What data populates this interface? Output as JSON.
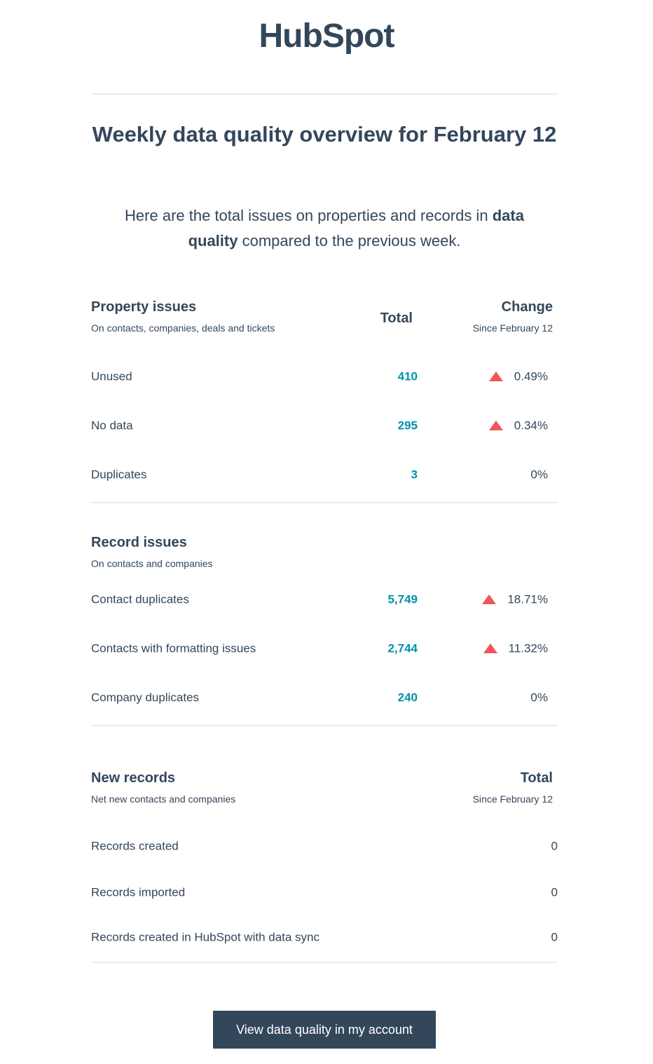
{
  "logo": "HubSpot",
  "title": "Weekly data quality overview for February 12",
  "intro": {
    "before": "Here are the total issues on properties and records in",
    "bold": "data quality",
    "after": "compared to the previous week."
  },
  "sections": [
    {
      "title": "Property issues",
      "subtitle": "On contacts, companies, deals and tickets",
      "total_header": "Total",
      "change_header": "Change",
      "change_subheader": "Since February 12",
      "rows": [
        {
          "label": "Unused",
          "total": "410",
          "change": "0.49%",
          "up": true
        },
        {
          "label": "No data",
          "total": "295",
          "change": "0.34%",
          "up": true
        },
        {
          "label": "Duplicates",
          "total": "3",
          "change": "0%",
          "up": false
        }
      ]
    },
    {
      "title": "Record issues",
      "subtitle": "On contacts and companies",
      "rows": [
        {
          "label": "Contact duplicates",
          "total": "5,749",
          "change": "18.71%",
          "up": true
        },
        {
          "label": "Contacts with formatting issues",
          "total": "2,744",
          "change": "11.32%",
          "up": true
        },
        {
          "label": "Company duplicates",
          "total": "240",
          "change": "0%",
          "up": false
        }
      ]
    },
    {
      "title": "New records",
      "subtitle": "Net new contacts and companies",
      "change_header": "Total",
      "change_subheader": "Since February 12",
      "rows": [
        {
          "label": "Records created",
          "change": "0"
        },
        {
          "label": "Records imported",
          "change": "0"
        },
        {
          "label": "Records created in HubSpot with data sync",
          "change": "0"
        }
      ]
    }
  ],
  "button": "View data quality in my account"
}
